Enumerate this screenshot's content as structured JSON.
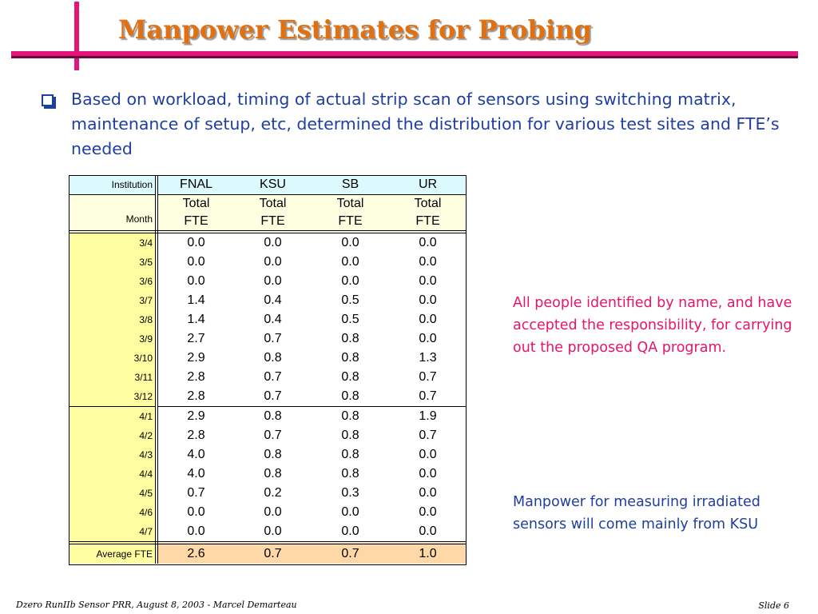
{
  "slide": {
    "title": "Manpower Estimates for Probing",
    "bullet": "Based on workload, timing of actual strip scan of sensors using switching matrix, maintenance of setup, etc, determined the distribution for various test sites and FTE’s needed",
    "note_red": "All people identified by name, and have accepted the responsibility, for carrying out the proposed QA program.",
    "note_blue": "Manpower for measuring irradiated sensors will come mainly from KSU",
    "footer_left": "Dzero RunIIb Sensor PRR, August 8, 2003  - Marcel Demarteau",
    "footer_right": "Slide 6",
    "colors": {
      "accent_bar": "#e4157a",
      "title": "#e07010",
      "body_text": "#1f3fa0",
      "note_red": "#e4156a"
    }
  },
  "table": {
    "corner_label": "Institution",
    "row_header_label": "Month",
    "columns": [
      "FNAL",
      "KSU",
      "SB",
      "UR"
    ],
    "sub_header_line1": "Total",
    "sub_header_line2": "FTE",
    "rows": [
      {
        "month": "3/4",
        "values": [
          "0.0",
          "0.0",
          "0.0",
          "0.0"
        ]
      },
      {
        "month": "3/5",
        "values": [
          "0.0",
          "0.0",
          "0.0",
          "0.0"
        ]
      },
      {
        "month": "3/6",
        "values": [
          "0.0",
          "0.0",
          "0.0",
          "0.0"
        ]
      },
      {
        "month": "3/7",
        "values": [
          "1.4",
          "0.4",
          "0.5",
          "0.0"
        ]
      },
      {
        "month": "3/8",
        "values": [
          "1.4",
          "0.4",
          "0.5",
          "0.0"
        ]
      },
      {
        "month": "3/9",
        "values": [
          "2.7",
          "0.7",
          "0.8",
          "0.0"
        ]
      },
      {
        "month": "3/10",
        "values": [
          "2.9",
          "0.8",
          "0.8",
          "1.3"
        ]
      },
      {
        "month": "3/11",
        "values": [
          "2.8",
          "0.7",
          "0.8",
          "0.7"
        ]
      },
      {
        "month": "3/12",
        "values": [
          "2.8",
          "0.7",
          "0.8",
          "0.7"
        ]
      },
      {
        "month": "4/1",
        "values": [
          "2.9",
          "0.8",
          "0.8",
          "1.9"
        ]
      },
      {
        "month": "4/2",
        "values": [
          "2.8",
          "0.7",
          "0.8",
          "0.7"
        ]
      },
      {
        "month": "4/3",
        "values": [
          "4.0",
          "0.8",
          "0.8",
          "0.0"
        ]
      },
      {
        "month": "4/4",
        "values": [
          "4.0",
          "0.8",
          "0.8",
          "0.0"
        ]
      },
      {
        "month": "4/5",
        "values": [
          "0.7",
          "0.2",
          "0.3",
          "0.0"
        ]
      },
      {
        "month": "4/6",
        "values": [
          "0.0",
          "0.0",
          "0.0",
          "0.0"
        ]
      },
      {
        "month": "4/7",
        "values": [
          "0.0",
          "0.0",
          "0.0",
          "0.0"
        ]
      }
    ],
    "average": {
      "label": "Average FTE",
      "values": [
        "2.6",
        "0.7",
        "0.7",
        "1.0"
      ]
    }
  }
}
